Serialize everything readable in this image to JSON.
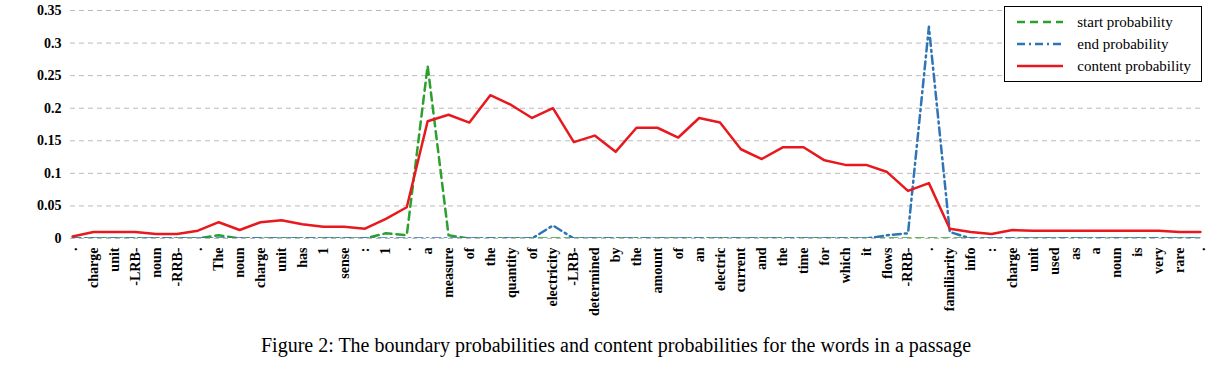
{
  "chart_data": {
    "type": "line",
    "title": "Figure 2: The boundary probabilities and content probabilities for the words in a passage",
    "categories": [
      ".",
      "charge",
      "unit",
      "-LRB-",
      "noun",
      "-RRB-",
      ".",
      "The",
      "noun",
      "charge",
      "unit",
      "has",
      "1",
      "sense",
      ":",
      "1",
      ".",
      "a",
      "measure",
      "of",
      "the",
      "quantity",
      "of",
      "electricity",
      "-LRB-",
      "determined",
      "by",
      "the",
      "amount",
      "of",
      "an",
      "electric",
      "current",
      "and",
      "the",
      "time",
      "for",
      "which",
      "it",
      "flows",
      "-RRB-",
      ".",
      "familiarity",
      "info",
      ":",
      "charge",
      "unit",
      "used",
      "as",
      "a",
      "noun",
      "is",
      "very",
      "rare",
      "."
    ],
    "series": [
      {
        "name": "start probability",
        "color": "#2ca02c",
        "line_style": "dashed",
        "values": [
          0,
          0,
          0,
          0,
          0,
          0,
          0,
          0.005,
          0,
          0,
          0,
          0,
          0,
          0,
          0,
          0.008,
          0.005,
          0.265,
          0.005,
          0,
          0,
          0,
          0,
          0,
          0,
          0,
          0,
          0,
          0,
          0,
          0,
          0,
          0,
          0,
          0,
          0,
          0,
          0,
          0,
          0,
          0,
          0,
          0,
          0,
          0,
          0,
          0,
          0,
          0,
          0,
          0,
          0,
          0,
          0,
          0
        ]
      },
      {
        "name": "end probability",
        "color": "#2f75b5",
        "line_style": "dashdot",
        "values": [
          0,
          0,
          0,
          0,
          0,
          0,
          0,
          0,
          0,
          0,
          0,
          0,
          0,
          0,
          0,
          0,
          0,
          0,
          0,
          0,
          0,
          0,
          0,
          0.02,
          0,
          0,
          0,
          0,
          0,
          0,
          0,
          0,
          0,
          0,
          0,
          0,
          0,
          0,
          0,
          0.005,
          0.008,
          0.325,
          0.01,
          0,
          0,
          0,
          0,
          0,
          0,
          0,
          0,
          0,
          0,
          0,
          0
        ]
      },
      {
        "name": "content probability",
        "color": "#e8191e",
        "line_style": "solid",
        "values": [
          0.003,
          0.01,
          0.01,
          0.01,
          0.007,
          0.007,
          0.012,
          0.025,
          0.013,
          0.025,
          0.028,
          0.022,
          0.018,
          0.018,
          0.015,
          0.03,
          0.048,
          0.18,
          0.19,
          0.178,
          0.22,
          0.205,
          0.185,
          0.2,
          0.148,
          0.158,
          0.133,
          0.17,
          0.17,
          0.155,
          0.185,
          0.178,
          0.137,
          0.122,
          0.14,
          0.14,
          0.12,
          0.113,
          0.113,
          0.102,
          0.073,
          0.085,
          0.015,
          0.01,
          0.007,
          0.013,
          0.012,
          0.012,
          0.012,
          0.012,
          0.012,
          0.012,
          0.012,
          0.01,
          0.01
        ]
      }
    ],
    "ylim": [
      0,
      0.35
    ],
    "yticks": [
      0,
      0.05,
      0.1,
      0.15,
      0.2,
      0.25,
      0.3,
      0.35
    ],
    "grid": true,
    "legend": "top-right"
  }
}
